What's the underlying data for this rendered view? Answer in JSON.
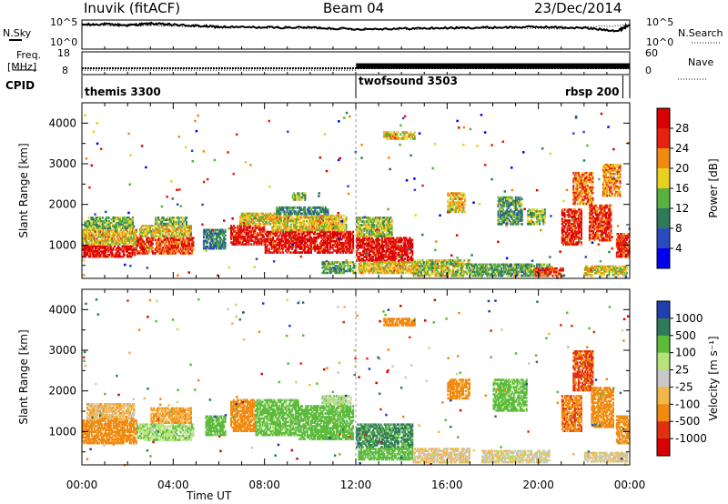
{
  "header": {
    "station": "Inuvik (fitACF)",
    "beam": "Beam 04",
    "date": "23/Dec/2014"
  },
  "sky_panel": {
    "left_label": "N.Sky",
    "right_label": "N.Search",
    "left_ticks": [
      "10^5",
      "10^0"
    ],
    "right_ticks": [
      "10^5",
      "10^0"
    ]
  },
  "freq_panel": {
    "left_label_1": "Freq.",
    "left_label_2": "[MHz]",
    "right_label": "Nave",
    "left_ticks": [
      "18",
      "8"
    ],
    "right_ticks": [
      "60",
      "0"
    ]
  },
  "cpid_panel": {
    "label": "CPID"
  },
  "chart_data": [
    {
      "type": "line",
      "panel": "noise",
      "series": [
        {
          "name": "N.Sky",
          "x_hours": [
            0,
            1,
            2,
            3,
            4,
            5,
            6,
            8,
            10,
            12,
            14,
            16,
            18,
            20,
            22,
            23.5,
            24
          ],
          "log10_values": [
            4.3,
            4.4,
            4.2,
            4.5,
            4.3,
            4.1,
            3.9,
            3.8,
            3.8,
            3.5,
            3.6,
            3.7,
            3.8,
            3.9,
            3.7,
            3.2,
            4.4
          ]
        },
        {
          "name": "N.Search",
          "x_hours": [
            0,
            3,
            6,
            9,
            12,
            15,
            18,
            21,
            24
          ],
          "log10_values": [
            4.2,
            4.3,
            3.8,
            3.7,
            3.4,
            3.5,
            3.7,
            3.6,
            4.2
          ]
        }
      ],
      "ylim_log10": [
        0,
        5
      ]
    },
    {
      "type": "line",
      "panel": "frequency",
      "series": [
        {
          "name": "Freq.",
          "x_hours": [
            0,
            12,
            24
          ],
          "values": [
            10.6,
            10.6,
            10.6
          ]
        },
        {
          "name": "Nave",
          "x_hours": [
            0,
            12,
            12.01,
            24
          ],
          "values": [
            10,
            10,
            22,
            22
          ]
        }
      ],
      "ylim_left": [
        8,
        18
      ],
      "ylim_right": [
        0,
        60
      ]
    },
    {
      "type": "table",
      "panel": "cpid",
      "segments": [
        {
          "label": "themis 3300",
          "start_hour": 0,
          "end_hour": 12
        },
        {
          "label": "twofsound 3503",
          "start_hour": 12,
          "end_hour": 24
        },
        {
          "label": "rbsp 200",
          "start_hour": 23.7,
          "end_hour": 24
        }
      ]
    },
    {
      "type": "heatmap",
      "panel": "power",
      "ylabel": "Slant Range [km]",
      "xlabel": "",
      "yticks": [
        "1000",
        "2000",
        "3000",
        "4000"
      ],
      "ylim": [
        180,
        4500
      ],
      "xlim_hours": [
        0,
        24
      ],
      "colorbar": {
        "title": "Power [dB]",
        "ticks": [
          "4",
          "8",
          "12",
          "16",
          "20",
          "24",
          "28"
        ],
        "range": [
          0,
          30
        ],
        "colors": [
          "#0000ee",
          "#2a4bc0",
          "#2f7a5a",
          "#58b040",
          "#e8d020",
          "#f08a10",
          "#e82010",
          "#d80000"
        ]
      },
      "regions": [
        {
          "t": [
            0.0,
            2.4
          ],
          "r": [
            700,
            1000
          ],
          "v": 27
        },
        {
          "t": [
            0.0,
            2.4
          ],
          "r": [
            1000,
            1400
          ],
          "v": 18
        },
        {
          "t": [
            0.1,
            2.3
          ],
          "r": [
            1400,
            1700
          ],
          "v": 13
        },
        {
          "t": [
            2.4,
            4.9
          ],
          "r": [
            780,
            1200
          ],
          "v": 24
        },
        {
          "t": [
            2.5,
            4.8
          ],
          "r": [
            1200,
            1500
          ],
          "v": 18
        },
        {
          "t": [
            3.2,
            4.6
          ],
          "r": [
            1500,
            1700
          ],
          "v": 12
        },
        {
          "t": [
            5.3,
            6.3
          ],
          "r": [
            900,
            1400
          ],
          "v": 9
        },
        {
          "t": [
            6.5,
            8.0
          ],
          "r": [
            1000,
            1500
          ],
          "v": 26
        },
        {
          "t": [
            6.9,
            8.5
          ],
          "r": [
            1500,
            1800
          ],
          "v": 17
        },
        {
          "t": [
            8.0,
            11.9
          ],
          "r": [
            800,
            1350
          ],
          "v": 27
        },
        {
          "t": [
            8.3,
            11.6
          ],
          "r": [
            1350,
            1750
          ],
          "v": 18
        },
        {
          "t": [
            8.5,
            10.8
          ],
          "r": [
            1750,
            1950
          ],
          "v": 10
        },
        {
          "t": [
            9.2,
            9.8
          ],
          "r": [
            2100,
            2300
          ],
          "v": 13
        },
        {
          "t": [
            10.5,
            12.0
          ],
          "r": [
            300,
            600
          ],
          "v": 12
        },
        {
          "t": [
            12.0,
            14.5
          ],
          "r": [
            600,
            1200
          ],
          "v": 27
        },
        {
          "t": [
            12.1,
            14.8
          ],
          "r": [
            300,
            600
          ],
          "v": 18
        },
        {
          "t": [
            12.0,
            13.6
          ],
          "r": [
            1200,
            1700
          ],
          "v": 15
        },
        {
          "t": [
            13.2,
            14.6
          ],
          "r": [
            3600,
            3800
          ],
          "v": 18
        },
        {
          "t": [
            14.5,
            17.0
          ],
          "r": [
            230,
            650
          ],
          "v": 15
        },
        {
          "t": [
            17.0,
            20.5
          ],
          "r": [
            230,
            550
          ],
          "v": 12
        },
        {
          "t": [
            16.0,
            16.8
          ],
          "r": [
            1800,
            2300
          ],
          "v": 18
        },
        {
          "t": [
            18.2,
            19.3
          ],
          "r": [
            1500,
            2200
          ],
          "v": 11
        },
        {
          "t": [
            19.5,
            20.3
          ],
          "r": [
            1500,
            1900
          ],
          "v": 14
        },
        {
          "t": [
            19.8,
            21.1
          ],
          "r": [
            230,
            450
          ],
          "v": 24
        },
        {
          "t": [
            21.0,
            21.9
          ],
          "r": [
            1000,
            1900
          ],
          "v": 26
        },
        {
          "t": [
            21.5,
            22.4
          ],
          "r": [
            2000,
            2800
          ],
          "v": 22
        },
        {
          "t": [
            22.2,
            23.2
          ],
          "r": [
            1100,
            2000
          ],
          "v": 24
        },
        {
          "t": [
            22.8,
            23.6
          ],
          "r": [
            2200,
            3000
          ],
          "v": 20
        },
        {
          "t": [
            23.4,
            24.0
          ],
          "r": [
            700,
            1300
          ],
          "v": 25
        },
        {
          "t": [
            22.0,
            23.9
          ],
          "r": [
            250,
            500
          ],
          "v": 17
        }
      ]
    },
    {
      "type": "heatmap",
      "panel": "velocity",
      "ylabel": "Slant Range [km]",
      "xlabel": "Time UT",
      "yticks": [
        "1000",
        "2000",
        "3000",
        "4000"
      ],
      "xticks": [
        "00:00",
        "04:00",
        "08:00",
        "12:00",
        "16:00",
        "20:00",
        "00:00"
      ],
      "ylim": [
        180,
        4500
      ],
      "xlim_hours": [
        0,
        24
      ],
      "colorbar": {
        "title": "Velocity [m s⁻¹]",
        "ticks": [
          "1000",
          "500",
          "100",
          "25",
          "-25",
          "-100",
          "-500",
          "-1000"
        ],
        "colors": [
          "#1f3fb0",
          "#2f7a5a",
          "#5dbb3c",
          "#b5e37a",
          "#c8c8c8",
          "#f2b64a",
          "#f08a10",
          "#e03010",
          "#d80000"
        ]
      },
      "regions": [
        {
          "t": [
            0.0,
            2.4
          ],
          "r": [
            700,
            1300
          ],
          "v": -300
        },
        {
          "t": [
            0.2,
            2.3
          ],
          "r": [
            1300,
            1700
          ],
          "v": -60
        },
        {
          "t": [
            2.4,
            4.9
          ],
          "r": [
            780,
            1200
          ],
          "v": 80
        },
        {
          "t": [
            3.0,
            4.8
          ],
          "r": [
            1200,
            1600
          ],
          "v": -100
        },
        {
          "t": [
            5.4,
            6.3
          ],
          "r": [
            900,
            1400
          ],
          "v": 200
        },
        {
          "t": [
            6.5,
            7.6
          ],
          "r": [
            1000,
            1800
          ],
          "v": -350
        },
        {
          "t": [
            7.6,
            9.5
          ],
          "r": [
            900,
            1800
          ],
          "v": 150
        },
        {
          "t": [
            9.5,
            11.9
          ],
          "r": [
            800,
            1650
          ],
          "v": 350
        },
        {
          "t": [
            10.5,
            11.8
          ],
          "r": [
            1650,
            1900
          ],
          "v": 60
        },
        {
          "t": [
            12.0,
            14.5
          ],
          "r": [
            600,
            1200
          ],
          "v": 600
        },
        {
          "t": [
            12.1,
            14.5
          ],
          "r": [
            300,
            600
          ],
          "v": 200
        },
        {
          "t": [
            14.5,
            17.0
          ],
          "r": [
            230,
            600
          ],
          "v": -30
        },
        {
          "t": [
            13.2,
            14.6
          ],
          "r": [
            3600,
            3800
          ],
          "v": -200
        },
        {
          "t": [
            16.0,
            17.0
          ],
          "r": [
            1800,
            2300
          ],
          "v": -150
        },
        {
          "t": [
            18.0,
            19.5
          ],
          "r": [
            1500,
            2300
          ],
          "v": 150
        },
        {
          "t": [
            17.5,
            20.5
          ],
          "r": [
            230,
            550
          ],
          "v": -10
        },
        {
          "t": [
            21.0,
            21.9
          ],
          "r": [
            1000,
            1900
          ],
          "v": -420
        },
        {
          "t": [
            21.5,
            22.4
          ],
          "r": [
            2000,
            3000
          ],
          "v": -550
        },
        {
          "t": [
            22.3,
            23.3
          ],
          "r": [
            1100,
            2100
          ],
          "v": -250
        },
        {
          "t": [
            23.4,
            24.0
          ],
          "r": [
            700,
            1400
          ],
          "v": -300
        },
        {
          "t": [
            22.0,
            23.9
          ],
          "r": [
            250,
            500
          ],
          "v": -20
        }
      ]
    }
  ]
}
